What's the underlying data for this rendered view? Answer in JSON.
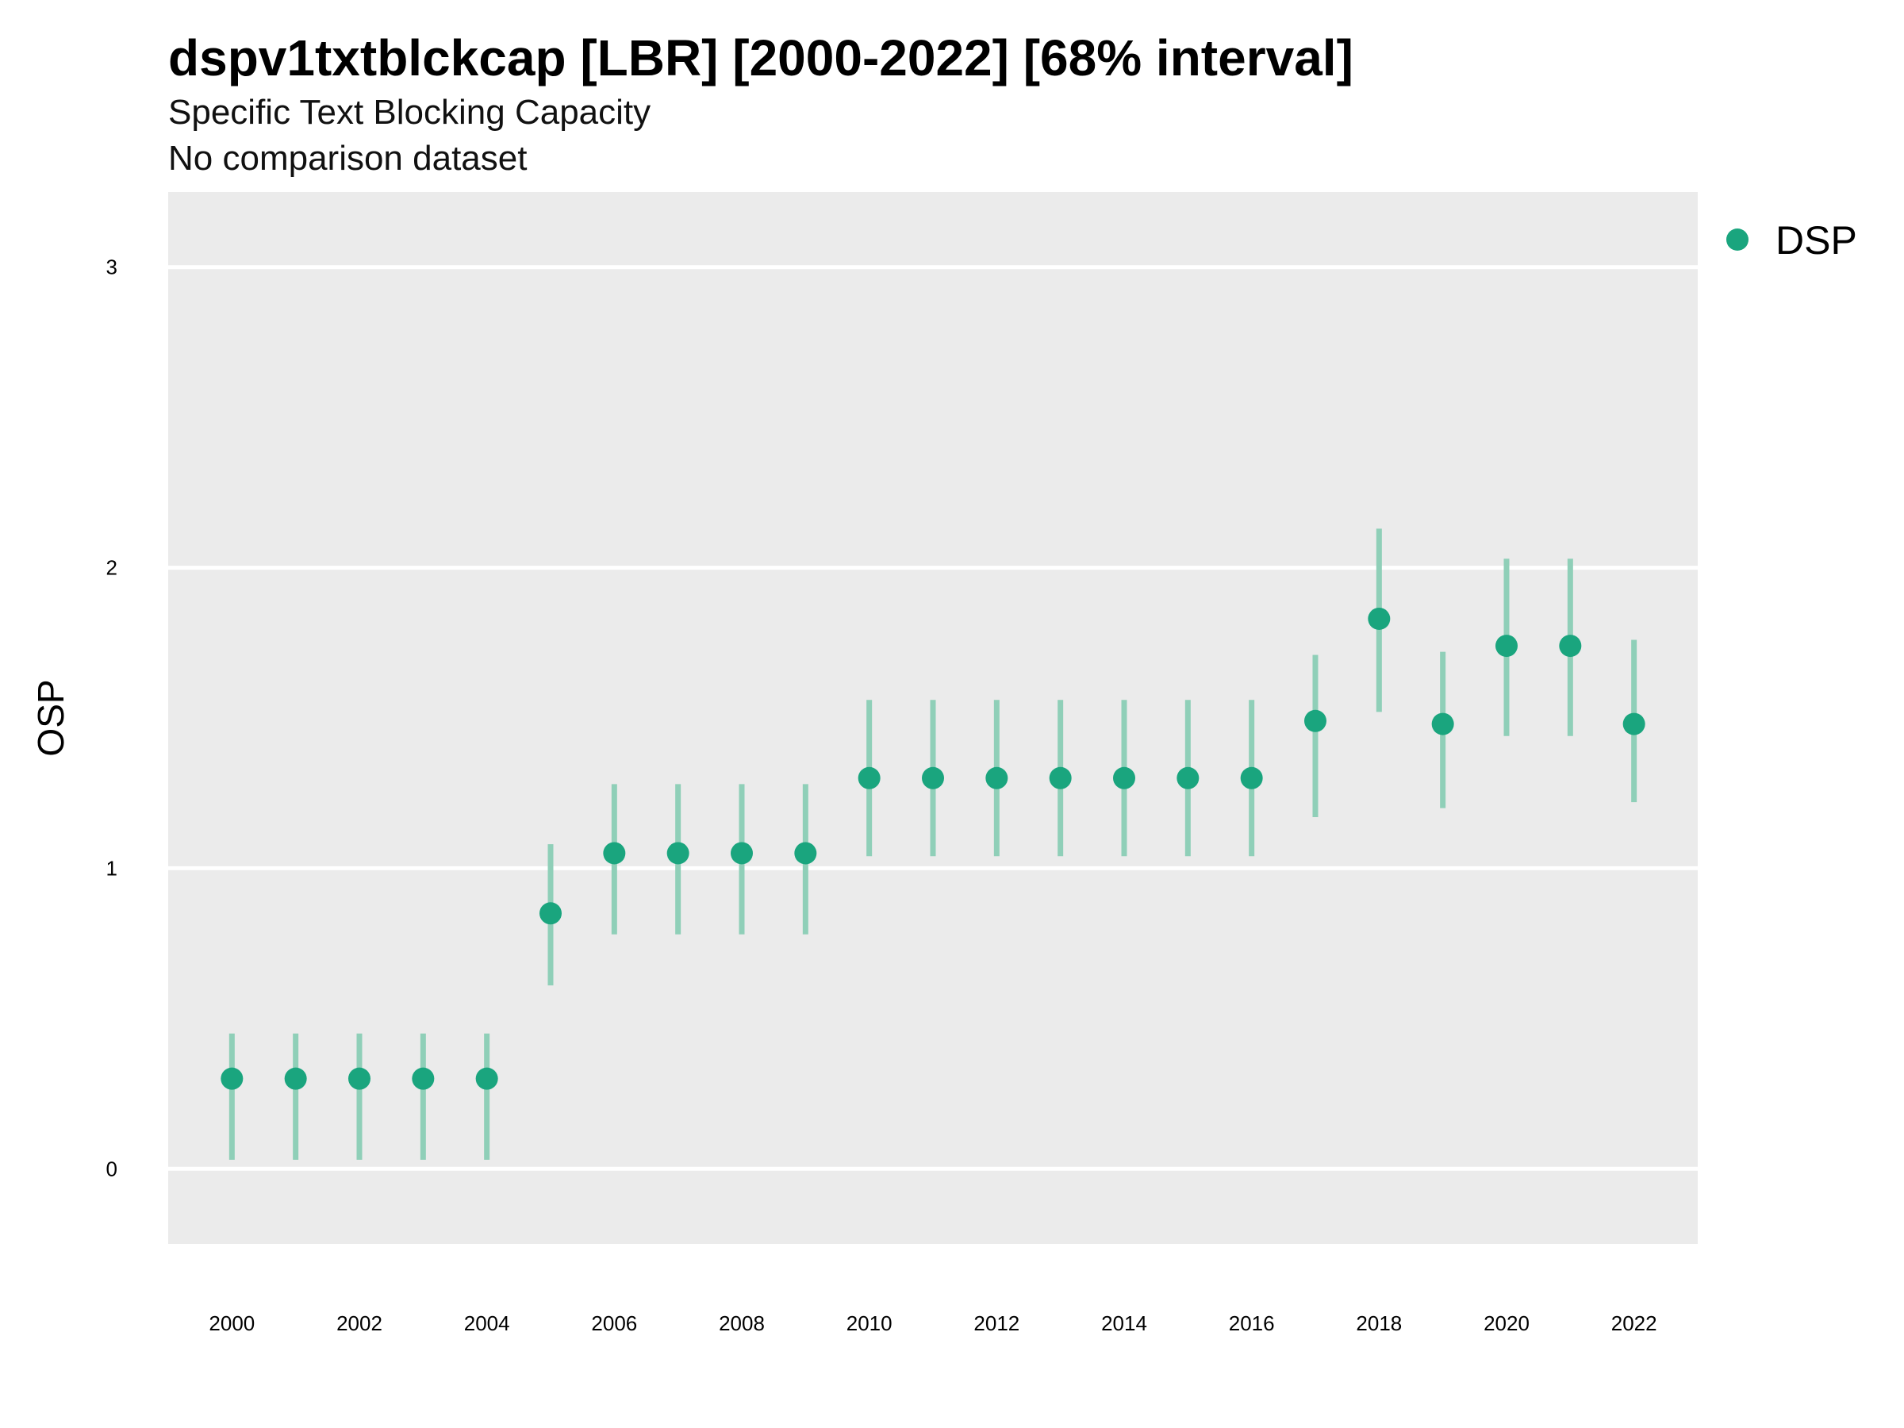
{
  "chart_data": {
    "type": "scatter",
    "title": "dspv1txtblckcap [LBR] [2000-2022] [68% interval]",
    "subtitle": "Specific Text Blocking Capacity",
    "subtitle2": "No comparison dataset",
    "xlabel": "",
    "ylabel": "OSP",
    "xlim": [
      1999,
      2023
    ],
    "ylim": [
      -0.25,
      3.25
    ],
    "x_ticks": [
      "2000",
      "2002",
      "2004",
      "2006",
      "2008",
      "2010",
      "2012",
      "2014",
      "2016",
      "2018",
      "2020",
      "2022"
    ],
    "y_ticks": [
      "0",
      "1",
      "2",
      "3"
    ],
    "grid": true,
    "legend_position": "right",
    "colors": {
      "point": "#1aa57e",
      "interval": "#8fcfb8",
      "panel": "#ebebeb",
      "grid": "#ffffff"
    },
    "series": [
      {
        "name": "DSP",
        "x": [
          2000,
          2001,
          2002,
          2003,
          2004,
          2005,
          2006,
          2007,
          2008,
          2009,
          2010,
          2011,
          2012,
          2013,
          2014,
          2015,
          2016,
          2017,
          2018,
          2019,
          2020,
          2021,
          2022
        ],
        "y": [
          0.3,
          0.3,
          0.3,
          0.3,
          0.3,
          0.85,
          1.05,
          1.05,
          1.05,
          1.05,
          1.3,
          1.3,
          1.3,
          1.3,
          1.3,
          1.3,
          1.3,
          1.49,
          1.83,
          1.48,
          1.74,
          1.74,
          1.48
        ],
        "lower": [
          0.03,
          0.03,
          0.03,
          0.03,
          0.03,
          0.61,
          0.78,
          0.78,
          0.78,
          0.78,
          1.04,
          1.04,
          1.04,
          1.04,
          1.04,
          1.04,
          1.04,
          1.17,
          1.52,
          1.2,
          1.44,
          1.44,
          1.22
        ],
        "upper": [
          0.45,
          0.45,
          0.45,
          0.45,
          0.45,
          1.08,
          1.28,
          1.28,
          1.28,
          1.28,
          1.56,
          1.56,
          1.56,
          1.56,
          1.56,
          1.56,
          1.56,
          1.71,
          2.13,
          1.72,
          2.03,
          2.03,
          1.76
        ]
      }
    ]
  }
}
